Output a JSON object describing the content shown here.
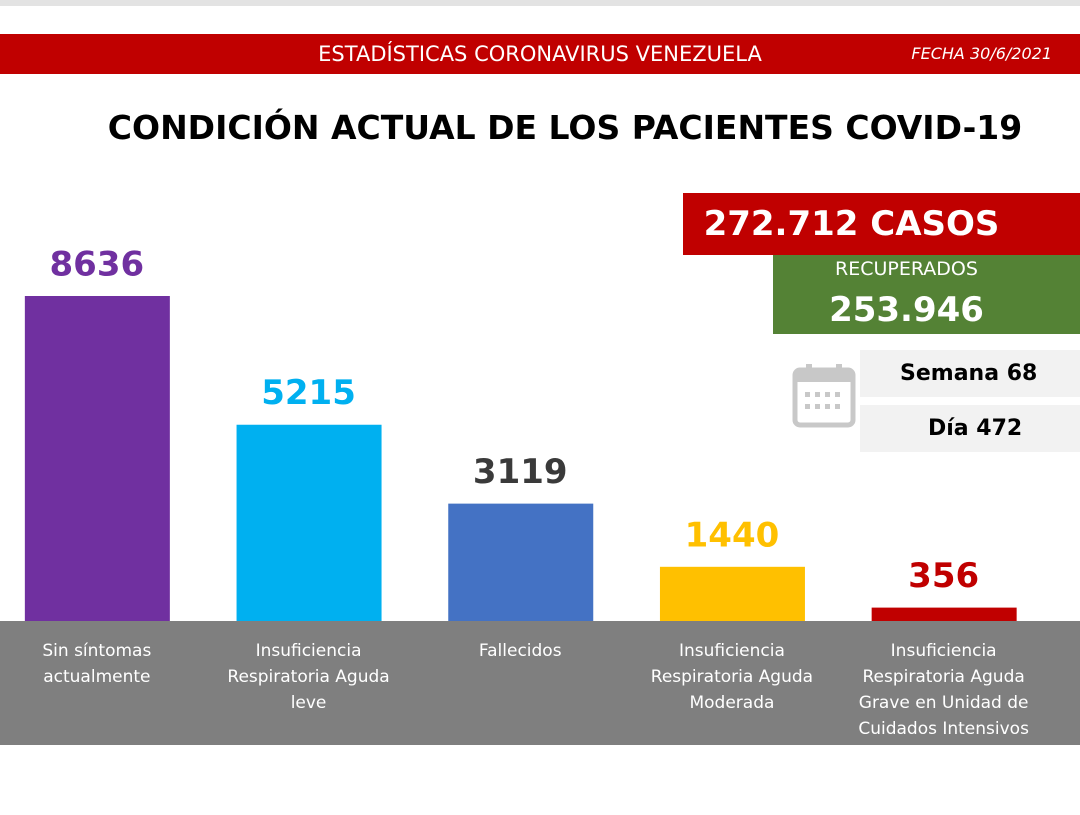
{
  "header": {
    "title": "ESTADÍSTICAS CORONAVIRUS VENEZUELA",
    "date": "FECHA 30/6/2021"
  },
  "summary": {
    "cases": "272.712 CASOS",
    "recovered_label": "RECUPERADOS",
    "recovered": "253.946",
    "week": "Semana 68",
    "day": "Día 472"
  },
  "chart_data": {
    "type": "bar",
    "title": "CONDICIÓN ACTUAL DE LOS PACIENTES COVID-19",
    "categories": [
      "Sin síntomas actualmente",
      "Insuficiencia Respiratoria Aguda leve",
      "Fallecidos",
      "Insuficiencia Respiratoria Aguda Moderada",
      "Insuficiencia Respiratoria Aguda Grave en Unidad de Cuidados Intensivos"
    ],
    "values": [
      8636,
      5215,
      3119,
      1440,
      356
    ],
    "colors": [
      "#7030a0",
      "#00b0f0",
      "#4472c4",
      "#ffc000",
      "#c00000"
    ],
    "label_colors": [
      "#7030a0",
      "#00b0f0",
      "#3a3a3a",
      "#ffc000",
      "#c00000"
    ]
  }
}
